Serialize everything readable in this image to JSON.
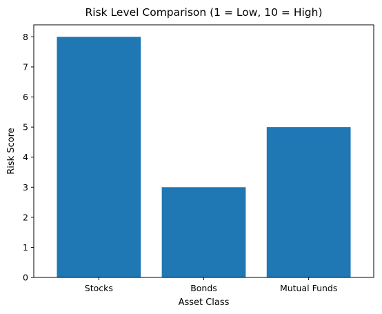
{
  "chart_data": {
    "type": "bar",
    "title": "Risk Level Comparison (1 = Low, 10 = High)",
    "xlabel": "Asset Class",
    "ylabel": "Risk Score",
    "categories": [
      "Stocks",
      "Bonds",
      "Mutual Funds"
    ],
    "values": [
      8,
      3,
      5
    ],
    "ylim": [
      0,
      8.4
    ],
    "yticks": [
      "0",
      "1",
      "2",
      "3",
      "4",
      "5",
      "6",
      "7",
      "8"
    ],
    "bar_color": "#1f77b4",
    "grid": false,
    "legend": "none"
  }
}
